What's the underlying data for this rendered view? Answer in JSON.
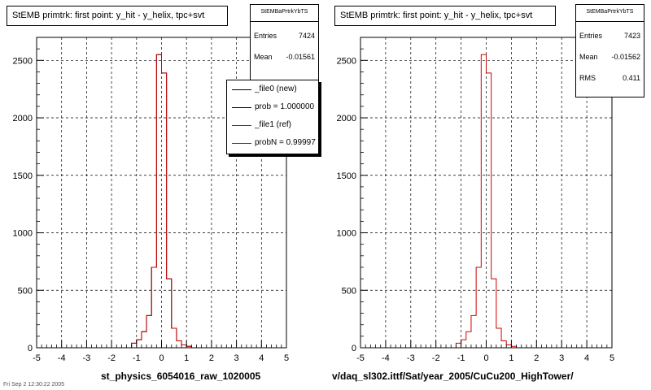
{
  "chart_data": [
    {
      "type": "step-histogram",
      "title": "StEMB primtrk: first point: y_hit - y_helix, tpc+svt",
      "xlabel": "st_physics_6054016_raw_1020005",
      "ylabel": "",
      "xlim": [
        -5,
        5
      ],
      "ylim": [
        0,
        2700
      ],
      "xticks": [
        -5,
        -4,
        -3,
        -2,
        -1,
        0,
        1,
        2,
        3,
        4,
        5
      ],
      "yticks": [
        0,
        500,
        1000,
        1500,
        2000,
        2500
      ],
      "grid": true,
      "bin_edges": [
        -1.2,
        -1.0,
        -0.8,
        -0.6,
        -0.4,
        -0.2,
        0.0,
        0.2,
        0.4,
        0.6,
        0.8,
        1.0,
        1.2
      ],
      "series": [
        {
          "name": "_file0 (new)",
          "color": "#000000",
          "values": [
            40,
            70,
            140,
            280,
            700,
            2550,
            2390,
            600,
            170,
            60,
            25,
            12
          ]
        },
        {
          "name": "_file1 (ref)",
          "color": "#d00000",
          "values": [
            40,
            70,
            140,
            280,
            700,
            2550,
            2390,
            600,
            170,
            60,
            25,
            12
          ]
        }
      ],
      "stats": {
        "title": "StEMBaPrtrkYbTS",
        "entries_label": "Entries",
        "entries": "7424",
        "mean_label": "Mean",
        "mean": "-0.01561"
      },
      "legend": {
        "position": "top-right",
        "entries": [
          "_file0 (new)",
          "prob = 1.000000",
          "_file1 (ref)",
          "probN = 0.99997"
        ]
      }
    },
    {
      "type": "step-histogram",
      "title": "StEMB primtrk: first point: y_hit - y_helix, tpc+svt",
      "xlabel": "v/daq_sl302.ittf/Sat/year_2005/CuCu200_HighTower/",
      "ylabel": "",
      "xlim": [
        -5,
        5
      ],
      "ylim": [
        0,
        2700
      ],
      "xticks": [
        -5,
        -4,
        -3,
        -2,
        -1,
        0,
        1,
        2,
        3,
        4,
        5
      ],
      "yticks": [
        0,
        500,
        1000,
        1500,
        2000,
        2500
      ],
      "grid": true,
      "bin_edges": [
        -1.2,
        -1.0,
        -0.8,
        -0.6,
        -0.4,
        -0.2,
        0.0,
        0.2,
        0.4,
        0.6,
        0.8,
        1.0,
        1.2
      ],
      "series": [
        {
          "name": "",
          "color": "#d00000",
          "values": [
            40,
            70,
            140,
            280,
            700,
            2550,
            2390,
            600,
            170,
            60,
            25,
            12
          ]
        }
      ],
      "stats": {
        "title": "StEMBaPrtrkYbTS",
        "entries_label": "Entries",
        "entries": "7423",
        "mean_label": "Mean",
        "mean": "-0.01562",
        "rms_label": "RMS",
        "rms": "0.411"
      }
    }
  ],
  "footer": "Fri Sep 2 12:30:22 2005"
}
